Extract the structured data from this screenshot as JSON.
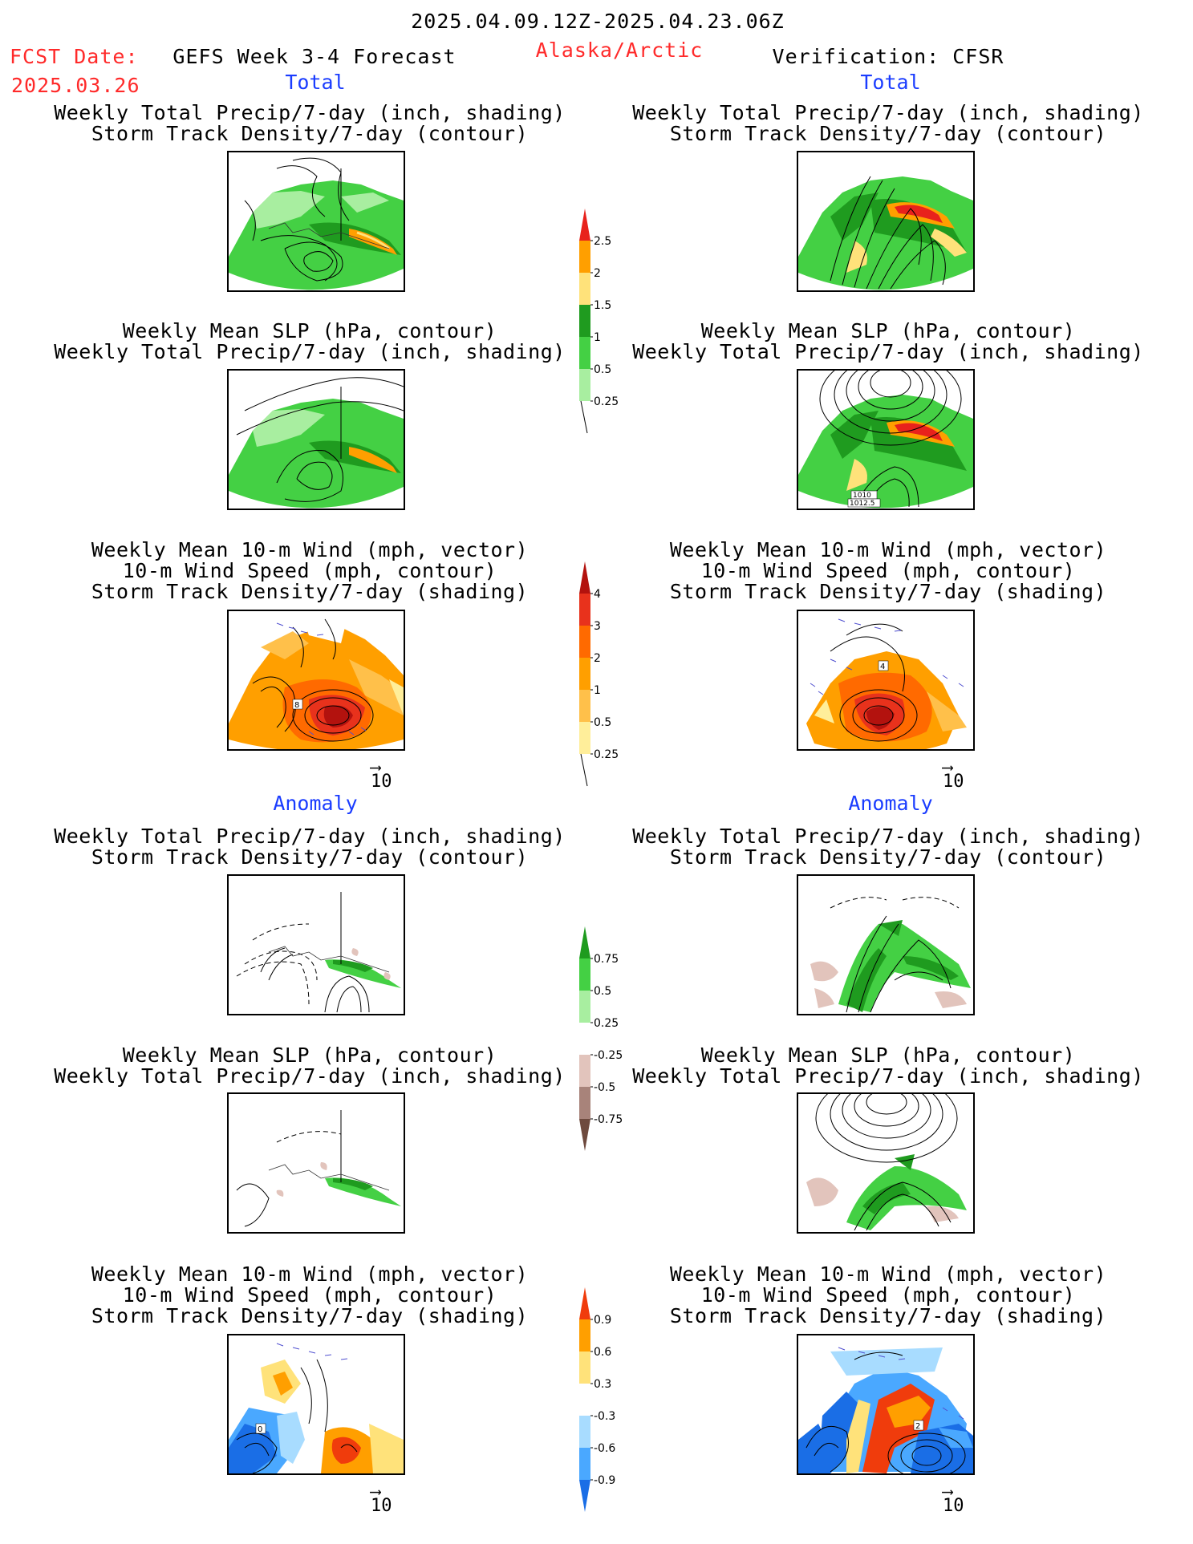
{
  "header": {
    "date_range": "2025.04.09.12Z-2025.04.23.06Z",
    "fcst_label": "FCST Date:",
    "fcst_date": "2025.03.26",
    "forecast_name": "GEFS Week 3-4 Forecast",
    "region": "Alaska/Arctic",
    "verification": "Verification: CFSR"
  },
  "sections": {
    "total": "Total",
    "anomaly": "Anomaly"
  },
  "titles": {
    "precip_track": [
      "Weekly Total Precip/7-day (inch, shading)",
      "Storm Track Density/7-day (contour)"
    ],
    "slp_precip": [
      "Weekly Mean SLP (hPa, contour)",
      "Weekly Total Precip/7-day (inch, shading)"
    ],
    "wind_track": [
      "Weekly Mean 10-m Wind (mph, vector)",
      "10-m Wind Speed (mph, contour)",
      "Storm Track Density/7-day (shading)"
    ]
  },
  "ref_vector": "10",
  "contour_labels": {
    "cfsr_slp": [
      "1010",
      "1012.5"
    ],
    "gefs_wind": "8",
    "cfsr_wind": "4",
    "gefs_wind_anom": "0",
    "cfsr_wind_anom": "2"
  },
  "colorbars": {
    "precip_total": {
      "labels": [
        "2.5",
        "2",
        "1.5",
        "1",
        "0.5",
        "0.25"
      ],
      "colors": [
        "#e8221c",
        "#ff9f00",
        "#ffe27a",
        "#1f9b1f",
        "#44d044",
        "#a8eea0"
      ]
    },
    "storm_total": {
      "labels": [
        "4",
        "3",
        "2",
        "1",
        "0.5",
        "0.25"
      ],
      "colors": [
        "#b3120e",
        "#e8321c",
        "#ff6a00",
        "#ff9f00",
        "#ffc04a",
        "#ffee9a"
      ]
    },
    "precip_anom": {
      "labels": [
        "0.75",
        "0.5",
        "0.25",
        "-0.25",
        "-0.5",
        "-0.75"
      ],
      "colors": [
        "#1f9b1f",
        "#44d044",
        "#a8eea0",
        "#ffffff",
        "#e2c4bc",
        "#a8837a",
        "#6e4a3e"
      ]
    },
    "storm_anom": {
      "labels": [
        "0.9",
        "0.6",
        "0.3",
        "-0.3",
        "-0.6",
        "-0.9"
      ],
      "colors": [
        "#f03c0c",
        "#ff9f00",
        "#ffe27a",
        "#ffffff",
        "#a8dcff",
        "#4aa8ff",
        "#1a6ee6"
      ]
    }
  }
}
